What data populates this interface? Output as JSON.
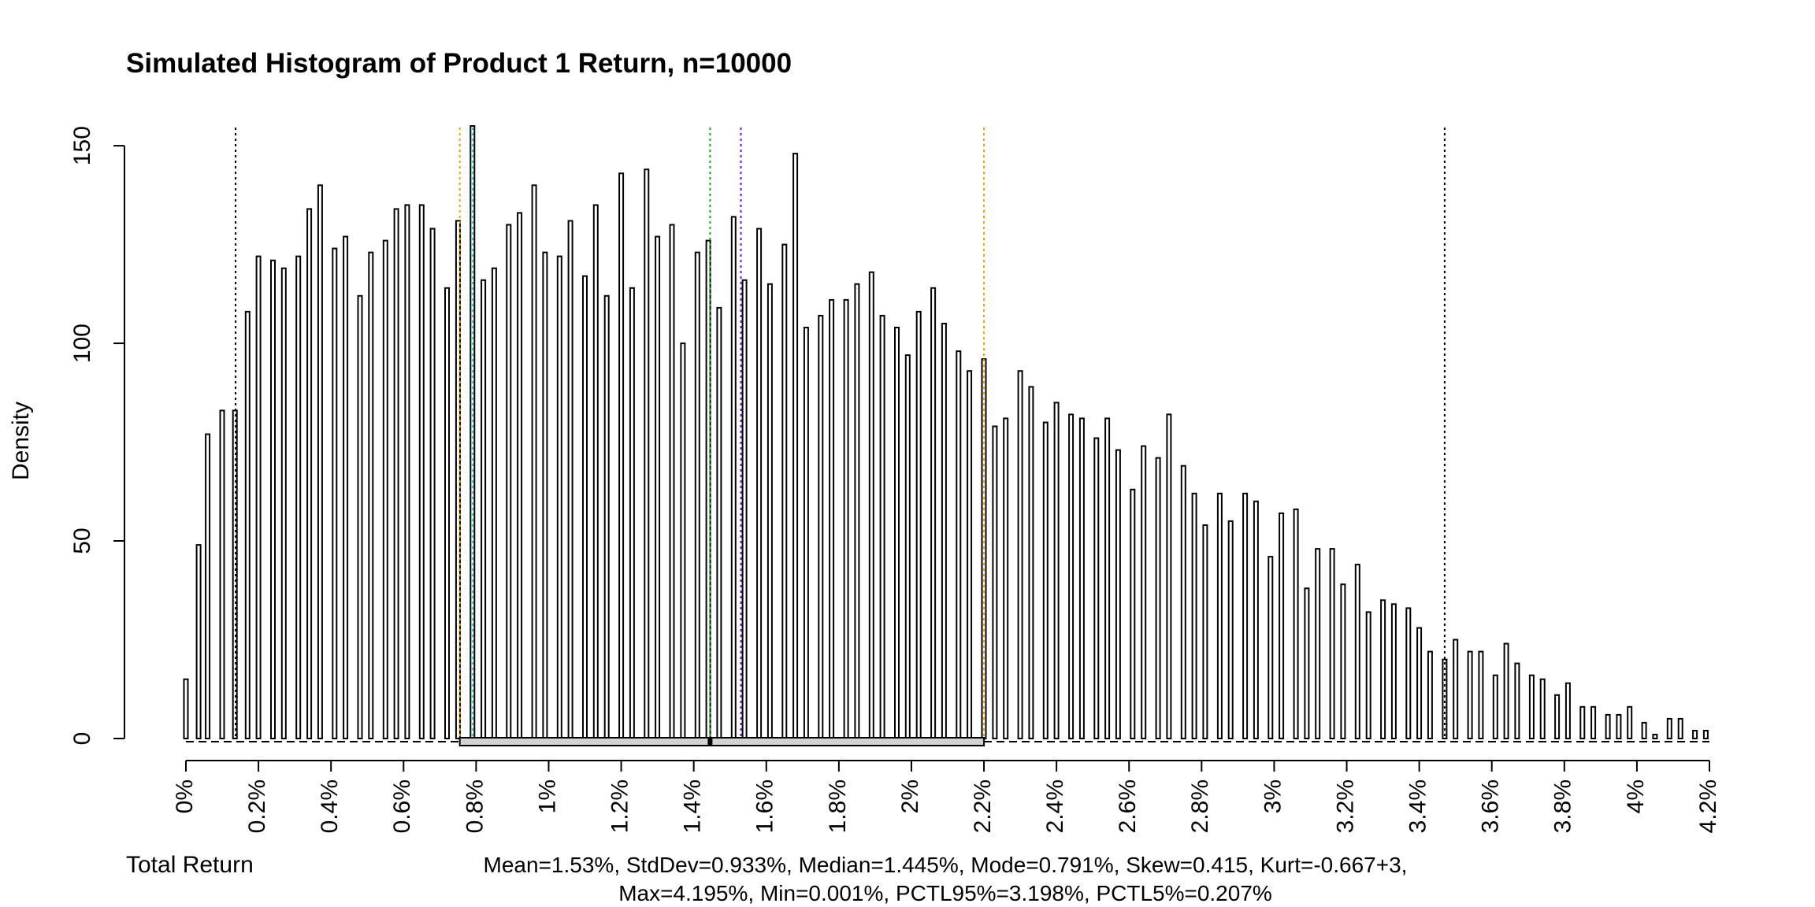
{
  "chart_data": {
    "type": "bar",
    "title": "Simulated Histogram of Product 1 Return, n=10000",
    "xlabel": "Total Return",
    "ylabel": "Density",
    "xlim": [
      0,
      4.2
    ],
    "ylim": [
      0,
      155
    ],
    "x_ticks": [
      {
        "value": 0.0,
        "label": "0%"
      },
      {
        "value": 0.2,
        "label": "0.2%"
      },
      {
        "value": 0.4,
        "label": "0.4%"
      },
      {
        "value": 0.6,
        "label": "0.6%"
      },
      {
        "value": 0.8,
        "label": "0.8%"
      },
      {
        "value": 1.0,
        "label": "1%"
      },
      {
        "value": 1.2,
        "label": "1.2%"
      },
      {
        "value": 1.4,
        "label": "1.4%"
      },
      {
        "value": 1.6,
        "label": "1.6%"
      },
      {
        "value": 1.8,
        "label": "1.8%"
      },
      {
        "value": 2.0,
        "label": "2%"
      },
      {
        "value": 2.2,
        "label": "2.2%"
      },
      {
        "value": 2.4,
        "label": "2.4%"
      },
      {
        "value": 2.6,
        "label": "2.6%"
      },
      {
        "value": 2.8,
        "label": "2.8%"
      },
      {
        "value": 3.0,
        "label": "3%"
      },
      {
        "value": 3.2,
        "label": "3.2%"
      },
      {
        "value": 3.4,
        "label": "3.4%"
      },
      {
        "value": 3.6,
        "label": "3.6%"
      },
      {
        "value": 3.8,
        "label": "3.8%"
      },
      {
        "value": 4.0,
        "label": "4%"
      },
      {
        "value": 4.2,
        "label": "4.2%"
      }
    ],
    "y_ticks": [
      {
        "value": 0,
        "label": "0"
      },
      {
        "value": 50,
        "label": "50"
      },
      {
        "value": 100,
        "label": "100"
      },
      {
        "value": 150,
        "label": "150"
      }
    ],
    "bin_width": 0.02,
    "bars": [
      {
        "x": 0.0,
        "value": 15
      },
      {
        "x": 0.035,
        "value": 49
      },
      {
        "x": 0.06,
        "value": 77
      },
      {
        "x": 0.1,
        "value": 83
      },
      {
        "x": 0.135,
        "value": 83
      },
      {
        "x": 0.17,
        "value": 108
      },
      {
        "x": 0.2,
        "value": 122
      },
      {
        "x": 0.24,
        "value": 121
      },
      {
        "x": 0.27,
        "value": 119
      },
      {
        "x": 0.31,
        "value": 122
      },
      {
        "x": 0.34,
        "value": 134
      },
      {
        "x": 0.37,
        "value": 140
      },
      {
        "x": 0.41,
        "value": 124
      },
      {
        "x": 0.44,
        "value": 127
      },
      {
        "x": 0.48,
        "value": 112
      },
      {
        "x": 0.51,
        "value": 123
      },
      {
        "x": 0.55,
        "value": 126
      },
      {
        "x": 0.58,
        "value": 134
      },
      {
        "x": 0.61,
        "value": 135
      },
      {
        "x": 0.65,
        "value": 135
      },
      {
        "x": 0.68,
        "value": 129
      },
      {
        "x": 0.72,
        "value": 114
      },
      {
        "x": 0.75,
        "value": 131
      },
      {
        "x": 0.79,
        "value": 155
      },
      {
        "x": 0.82,
        "value": 116
      },
      {
        "x": 0.85,
        "value": 119
      },
      {
        "x": 0.89,
        "value": 130
      },
      {
        "x": 0.92,
        "value": 133
      },
      {
        "x": 0.96,
        "value": 140
      },
      {
        "x": 0.99,
        "value": 123
      },
      {
        "x": 1.03,
        "value": 122
      },
      {
        "x": 1.06,
        "value": 131
      },
      {
        "x": 1.1,
        "value": 117
      },
      {
        "x": 1.13,
        "value": 135
      },
      {
        "x": 1.16,
        "value": 112
      },
      {
        "x": 1.2,
        "value": 143
      },
      {
        "x": 1.23,
        "value": 114
      },
      {
        "x": 1.27,
        "value": 144
      },
      {
        "x": 1.3,
        "value": 127
      },
      {
        "x": 1.34,
        "value": 130
      },
      {
        "x": 1.37,
        "value": 100
      },
      {
        "x": 1.41,
        "value": 123
      },
      {
        "x": 1.44,
        "value": 126
      },
      {
        "x": 1.47,
        "value": 109
      },
      {
        "x": 1.51,
        "value": 132
      },
      {
        "x": 1.54,
        "value": 116
      },
      {
        "x": 1.58,
        "value": 129
      },
      {
        "x": 1.61,
        "value": 115
      },
      {
        "x": 1.65,
        "value": 125
      },
      {
        "x": 1.68,
        "value": 148
      },
      {
        "x": 1.71,
        "value": 104
      },
      {
        "x": 1.75,
        "value": 107
      },
      {
        "x": 1.78,
        "value": 111
      },
      {
        "x": 1.82,
        "value": 111
      },
      {
        "x": 1.85,
        "value": 115
      },
      {
        "x": 1.89,
        "value": 118
      },
      {
        "x": 1.92,
        "value": 107
      },
      {
        "x": 1.96,
        "value": 104
      },
      {
        "x": 1.99,
        "value": 97
      },
      {
        "x": 2.02,
        "value": 108
      },
      {
        "x": 2.06,
        "value": 114
      },
      {
        "x": 2.09,
        "value": 105
      },
      {
        "x": 2.13,
        "value": 98
      },
      {
        "x": 2.16,
        "value": 93
      },
      {
        "x": 2.2,
        "value": 96
      },
      {
        "x": 2.23,
        "value": 79
      },
      {
        "x": 2.26,
        "value": 81
      },
      {
        "x": 2.3,
        "value": 93
      },
      {
        "x": 2.33,
        "value": 89
      },
      {
        "x": 2.37,
        "value": 80
      },
      {
        "x": 2.4,
        "value": 85
      },
      {
        "x": 2.44,
        "value": 82
      },
      {
        "x": 2.47,
        "value": 81
      },
      {
        "x": 2.51,
        "value": 76
      },
      {
        "x": 2.54,
        "value": 81
      },
      {
        "x": 2.57,
        "value": 73
      },
      {
        "x": 2.61,
        "value": 63
      },
      {
        "x": 2.64,
        "value": 74
      },
      {
        "x": 2.68,
        "value": 71
      },
      {
        "x": 2.71,
        "value": 82
      },
      {
        "x": 2.75,
        "value": 69
      },
      {
        "x": 2.78,
        "value": 62
      },
      {
        "x": 2.81,
        "value": 54
      },
      {
        "x": 2.85,
        "value": 62
      },
      {
        "x": 2.88,
        "value": 55
      },
      {
        "x": 2.92,
        "value": 62
      },
      {
        "x": 2.95,
        "value": 60
      },
      {
        "x": 2.99,
        "value": 46
      },
      {
        "x": 3.02,
        "value": 57
      },
      {
        "x": 3.06,
        "value": 58
      },
      {
        "x": 3.09,
        "value": 38
      },
      {
        "x": 3.12,
        "value": 48
      },
      {
        "x": 3.16,
        "value": 48
      },
      {
        "x": 3.19,
        "value": 39
      },
      {
        "x": 3.23,
        "value": 44
      },
      {
        "x": 3.26,
        "value": 32
      },
      {
        "x": 3.3,
        "value": 35
      },
      {
        "x": 3.33,
        "value": 34
      },
      {
        "x": 3.37,
        "value": 33
      },
      {
        "x": 3.4,
        "value": 28
      },
      {
        "x": 3.43,
        "value": 22
      },
      {
        "x": 3.47,
        "value": 20
      },
      {
        "x": 3.5,
        "value": 25
      },
      {
        "x": 3.54,
        "value": 22
      },
      {
        "x": 3.57,
        "value": 22
      },
      {
        "x": 3.61,
        "value": 16
      },
      {
        "x": 3.64,
        "value": 24
      },
      {
        "x": 3.67,
        "value": 19
      },
      {
        "x": 3.71,
        "value": 16
      },
      {
        "x": 3.74,
        "value": 15
      },
      {
        "x": 3.78,
        "value": 11
      },
      {
        "x": 3.81,
        "value": 14
      },
      {
        "x": 3.85,
        "value": 8
      },
      {
        "x": 3.88,
        "value": 8
      },
      {
        "x": 3.92,
        "value": 6
      },
      {
        "x": 3.95,
        "value": 6
      },
      {
        "x": 3.98,
        "value": 8
      },
      {
        "x": 4.02,
        "value": 4
      },
      {
        "x": 4.05,
        "value": 1
      },
      {
        "x": 4.09,
        "value": 5
      },
      {
        "x": 4.12,
        "value": 5
      },
      {
        "x": 4.16,
        "value": 2
      },
      {
        "x": 4.19,
        "value": 2
      }
    ],
    "vertical_lines": [
      {
        "value": 0.137,
        "color": "#000000"
      },
      {
        "value": 0.755,
        "color": "#ff9900"
      },
      {
        "value": 0.791,
        "color": "#00cccc"
      },
      {
        "value": 1.445,
        "color": "#00bb00"
      },
      {
        "value": 1.53,
        "color": "#8800ee"
      },
      {
        "value": 2.2,
        "color": "#ff9900"
      },
      {
        "value": 3.47,
        "color": "#000000"
      }
    ],
    "boxplot": {
      "whisker_low": 0.0,
      "q1": 0.755,
      "median": 1.445,
      "q3": 2.2,
      "whisker_high": 4.2
    },
    "stats_lines": [
      "Mean=1.53%, StdDev=0.933%, Median=1.445%, Mode=0.791%, Skew=0.415, Kurt=-0.667+3,",
      "Max=4.195%, Min=0.001%, PCTL95%=3.198%, PCTL5%=0.207%"
    ]
  }
}
